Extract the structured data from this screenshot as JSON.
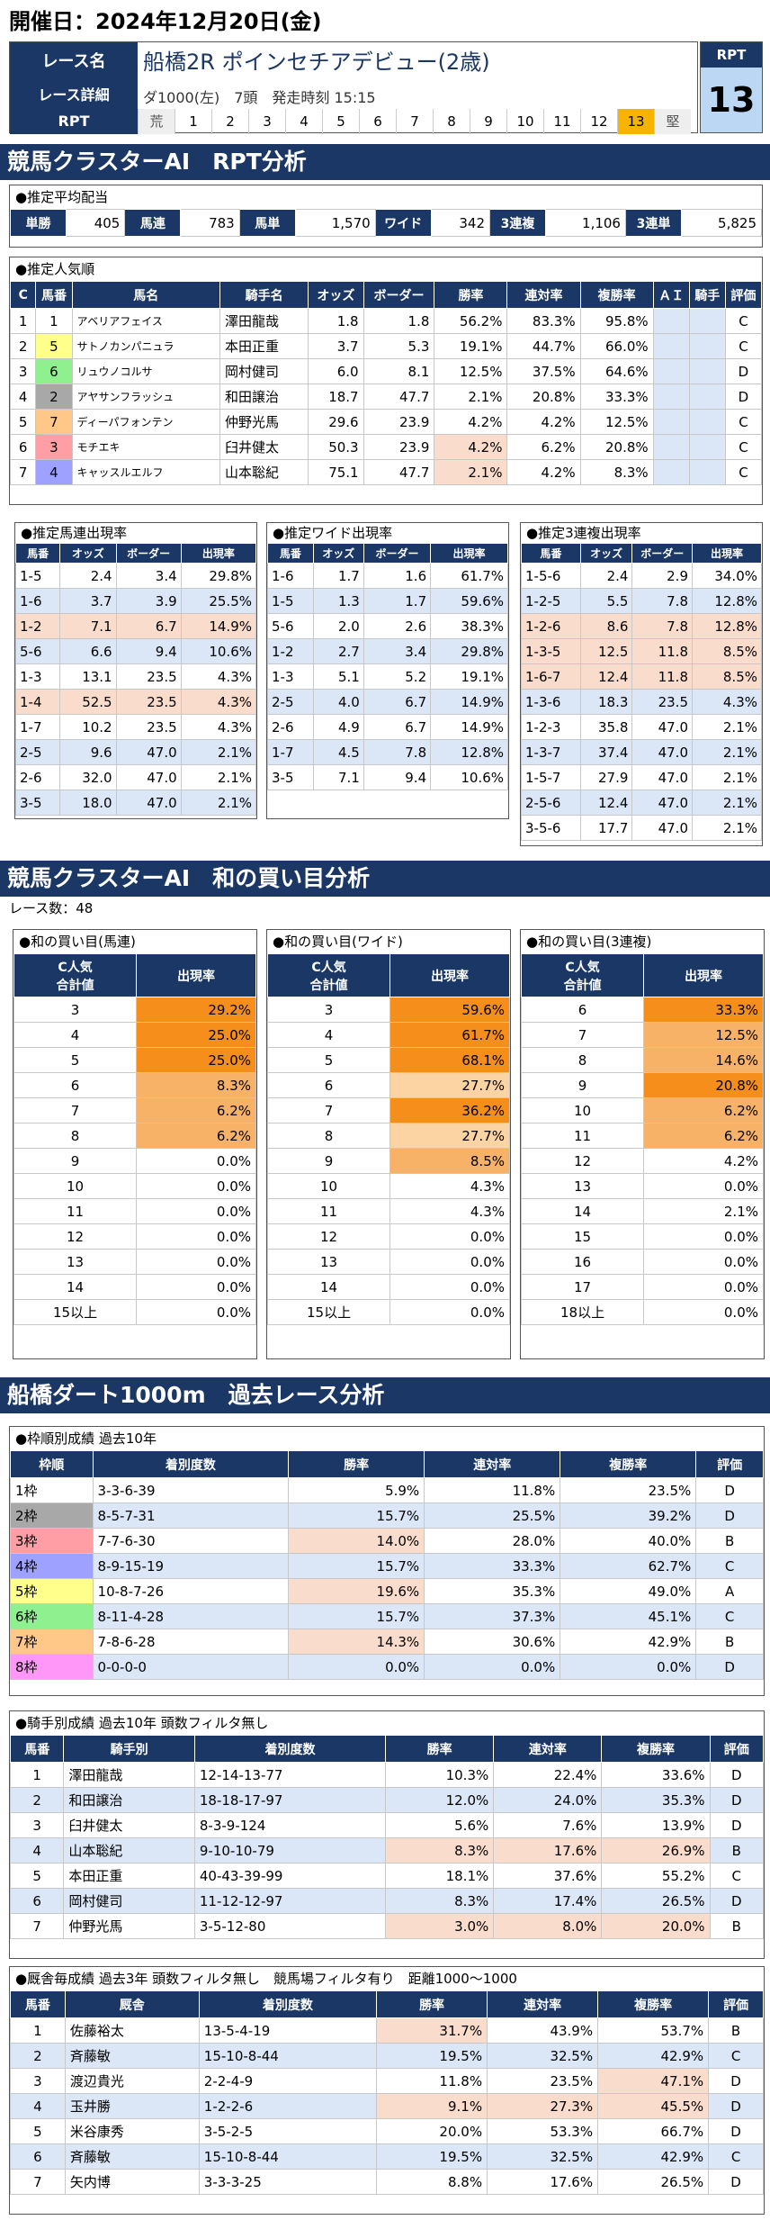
{
  "header": {
    "date": "開催日：2024年12月20日(金)"
  },
  "race": {
    "name_label": "レース名",
    "detail_label": "レース詳細",
    "rpt_label": "RPT",
    "name": "船橋2R ポインセチアデビュー(2歳)",
    "detail": "ダ1000(左)　7頭　発走時刻 15:15",
    "rpt_cells": [
      "荒",
      "1",
      "2",
      "3",
      "4",
      "5",
      "6",
      "7",
      "8",
      "9",
      "10",
      "11",
      "12",
      "13",
      "堅"
    ],
    "rpt_box_label": "RPT",
    "rpt_value": "13"
  },
  "sec1": {
    "title": "競馬クラスターAI　RPT分析"
  },
  "payout": {
    "title": "●推定平均配当",
    "items": [
      {
        "k": "単勝",
        "v": "405"
      },
      {
        "k": "馬連",
        "v": "783"
      },
      {
        "k": "馬単",
        "v": "1,570"
      },
      {
        "k": "ワイド",
        "v": "342"
      },
      {
        "k": "3連複",
        "v": "1,106"
      },
      {
        "k": "3連単",
        "v": "5,825"
      }
    ]
  },
  "pop": {
    "title": "●推定人気順",
    "headers": [
      "C",
      "馬番",
      "馬名",
      "騎手名",
      "オッズ",
      "ボーダー",
      "勝率",
      "連対率",
      "複勝率",
      "ＡＩ",
      "騎手",
      "評価"
    ],
    "rows": [
      [
        "1",
        "1",
        "アベリアフェイス",
        "澤田龍哉",
        "1.8",
        "1.8",
        "56.2%",
        "83.3%",
        "95.8%",
        "",
        "",
        "C"
      ],
      [
        "2",
        "5",
        "サトノカンパニュラ",
        "本田正重",
        "3.7",
        "5.3",
        "19.1%",
        "44.7%",
        "66.0%",
        "",
        "",
        "C"
      ],
      [
        "3",
        "6",
        "リュウノコルサ",
        "岡村健司",
        "6.0",
        "8.1",
        "12.5%",
        "37.5%",
        "64.6%",
        "",
        "",
        "D"
      ],
      [
        "4",
        "2",
        "アヤサンフラッシュ",
        "和田譲治",
        "18.7",
        "47.7",
        "2.1%",
        "20.8%",
        "33.3%",
        "",
        "",
        "D"
      ],
      [
        "5",
        "7",
        "ディーパフォンテン",
        "仲野光馬",
        "29.6",
        "23.9",
        "4.2%",
        "4.2%",
        "12.5%",
        "",
        "",
        "C"
      ],
      [
        "6",
        "3",
        "モチエキ",
        "臼井健太",
        "50.3",
        "23.9",
        "4.2%",
        "6.2%",
        "20.8%",
        "",
        "",
        "C"
      ],
      [
        "7",
        "4",
        "キャッスルエルフ",
        "山本聡紀",
        "75.1",
        "47.7",
        "2.1%",
        "4.2%",
        "8.3%",
        "",
        "",
        "C"
      ]
    ]
  },
  "umaren": {
    "title": "●推定馬連出現率",
    "headers": [
      "馬番",
      "オッズ",
      "ボーダー",
      "出現率"
    ],
    "rows": [
      [
        "1-5",
        "2.4",
        "3.4",
        "29.8%"
      ],
      [
        "1-6",
        "3.7",
        "3.9",
        "25.5%"
      ],
      [
        "1-2",
        "7.1",
        "6.7",
        "14.9%"
      ],
      [
        "5-6",
        "6.6",
        "9.4",
        "10.6%"
      ],
      [
        "1-3",
        "13.1",
        "23.5",
        "4.3%"
      ],
      [
        "1-4",
        "52.5",
        "23.5",
        "4.3%"
      ],
      [
        "1-7",
        "10.2",
        "23.5",
        "4.3%"
      ],
      [
        "2-5",
        "9.6",
        "47.0",
        "2.1%"
      ],
      [
        "2-6",
        "32.0",
        "47.0",
        "2.1%"
      ],
      [
        "3-5",
        "18.0",
        "47.0",
        "2.1%"
      ]
    ]
  },
  "wide": {
    "title": "●推定ワイド出現率",
    "headers": [
      "馬番",
      "オッズ",
      "ボーダー",
      "出現率"
    ],
    "rows": [
      [
        "1-6",
        "1.7",
        "1.6",
        "61.7%"
      ],
      [
        "1-5",
        "1.3",
        "1.7",
        "59.6%"
      ],
      [
        "5-6",
        "2.0",
        "2.6",
        "38.3%"
      ],
      [
        "1-2",
        "2.7",
        "3.4",
        "29.8%"
      ],
      [
        "1-3",
        "5.1",
        "5.2",
        "19.1%"
      ],
      [
        "2-5",
        "4.0",
        "6.7",
        "14.9%"
      ],
      [
        "2-6",
        "4.9",
        "6.7",
        "14.9%"
      ],
      [
        "1-7",
        "4.5",
        "7.8",
        "12.8%"
      ],
      [
        "3-5",
        "7.1",
        "9.4",
        "10.6%"
      ]
    ]
  },
  "trio": {
    "title": "●推定3連複出現率",
    "headers": [
      "馬番",
      "オッズ",
      "ボーダー",
      "出現率"
    ],
    "rows": [
      [
        "1-5-6",
        "2.4",
        "2.9",
        "34.0%"
      ],
      [
        "1-2-5",
        "5.5",
        "7.8",
        "12.8%"
      ],
      [
        "1-2-6",
        "8.6",
        "7.8",
        "12.8%"
      ],
      [
        "1-3-5",
        "12.5",
        "11.8",
        "8.5%"
      ],
      [
        "1-6-7",
        "12.4",
        "11.8",
        "8.5%"
      ],
      [
        "1-3-6",
        "18.3",
        "23.5",
        "4.3%"
      ],
      [
        "1-2-3",
        "35.8",
        "47.0",
        "2.1%"
      ],
      [
        "1-3-7",
        "37.4",
        "47.0",
        "2.1%"
      ],
      [
        "1-5-7",
        "27.9",
        "47.0",
        "2.1%"
      ],
      [
        "2-5-6",
        "12.4",
        "47.0",
        "2.1%"
      ],
      [
        "3-5-6",
        "17.7",
        "47.0",
        "2.1%"
      ]
    ]
  },
  "sec2": {
    "title": "競馬クラスターAI　和の買い目分析",
    "count": "レース数：48"
  },
  "sum": {
    "head1": "C人気",
    "head1b": "合計値",
    "head2": "出現率",
    "umaren": {
      "title": "●和の買い目(馬連)",
      "rows": [
        [
          "3",
          "29.2%"
        ],
        [
          "4",
          "25.0%"
        ],
        [
          "5",
          "25.0%"
        ],
        [
          "6",
          "8.3%"
        ],
        [
          "7",
          "6.2%"
        ],
        [
          "8",
          "6.2%"
        ],
        [
          "9",
          "0.0%"
        ],
        [
          "10",
          "0.0%"
        ],
        [
          "11",
          "0.0%"
        ],
        [
          "12",
          "0.0%"
        ],
        [
          "13",
          "0.0%"
        ],
        [
          "14",
          "0.0%"
        ],
        [
          "15以上",
          "0.0%"
        ]
      ]
    },
    "wide": {
      "title": "●和の買い目(ワイド)",
      "rows": [
        [
          "3",
          "59.6%"
        ],
        [
          "4",
          "61.7%"
        ],
        [
          "5",
          "68.1%"
        ],
        [
          "6",
          "27.7%"
        ],
        [
          "7",
          "36.2%"
        ],
        [
          "8",
          "27.7%"
        ],
        [
          "9",
          "8.5%"
        ],
        [
          "10",
          "4.3%"
        ],
        [
          "11",
          "4.3%"
        ],
        [
          "12",
          "0.0%"
        ],
        [
          "13",
          "0.0%"
        ],
        [
          "14",
          "0.0%"
        ],
        [
          "15以上",
          "0.0%"
        ]
      ]
    },
    "trio": {
      "title": "●和の買い目(3連複)",
      "rows": [
        [
          "6",
          "33.3%"
        ],
        [
          "7",
          "12.5%"
        ],
        [
          "8",
          "14.6%"
        ],
        [
          "9",
          "20.8%"
        ],
        [
          "10",
          "6.2%"
        ],
        [
          "11",
          "6.2%"
        ],
        [
          "12",
          "4.2%"
        ],
        [
          "13",
          "0.0%"
        ],
        [
          "14",
          "2.1%"
        ],
        [
          "15",
          "0.0%"
        ],
        [
          "16",
          "0.0%"
        ],
        [
          "17",
          "0.0%"
        ],
        [
          "18以上",
          "0.0%"
        ]
      ]
    }
  },
  "sec3": {
    "title": "船橋ダート1000m　過去レース分析"
  },
  "waku": {
    "title": "●枠順別成績 過去10年",
    "headers": [
      "枠順",
      "着別度数",
      "勝率",
      "連対率",
      "複勝率",
      "評価"
    ],
    "rows": [
      [
        "1枠",
        "3-3-6-39",
        "5.9%",
        "11.8%",
        "23.5%",
        "D"
      ],
      [
        "2枠",
        "8-5-7-31",
        "15.7%",
        "25.5%",
        "39.2%",
        "D"
      ],
      [
        "3枠",
        "7-7-6-30",
        "14.0%",
        "28.0%",
        "40.0%",
        "B"
      ],
      [
        "4枠",
        "8-9-15-19",
        "15.7%",
        "33.3%",
        "62.7%",
        "C"
      ],
      [
        "5枠",
        "10-8-7-26",
        "19.6%",
        "35.3%",
        "49.0%",
        "A"
      ],
      [
        "6枠",
        "8-11-4-28",
        "15.7%",
        "37.3%",
        "45.1%",
        "C"
      ],
      [
        "7枠",
        "7-8-6-28",
        "14.3%",
        "30.6%",
        "42.9%",
        "B"
      ],
      [
        "8枠",
        "0-0-0-0",
        "0.0%",
        "0.0%",
        "0.0%",
        "D"
      ]
    ]
  },
  "jockey": {
    "title": "●騎手別成績 過去10年 頭数フィルタ無し",
    "headers": [
      "馬番",
      "騎手別",
      "着別度数",
      "勝率",
      "連対率",
      "複勝率",
      "評価"
    ],
    "rows": [
      [
        "1",
        "澤田龍哉",
        "12-14-13-77",
        "10.3%",
        "22.4%",
        "33.6%",
        "D"
      ],
      [
        "2",
        "和田譲治",
        "18-18-17-97",
        "12.0%",
        "24.0%",
        "35.3%",
        "D"
      ],
      [
        "3",
        "臼井健太",
        "8-3-9-124",
        "5.6%",
        "7.6%",
        "13.9%",
        "D"
      ],
      [
        "4",
        "山本聡紀",
        "9-10-10-79",
        "8.3%",
        "17.6%",
        "26.9%",
        "B"
      ],
      [
        "5",
        "本田正重",
        "40-43-39-99",
        "18.1%",
        "37.6%",
        "55.2%",
        "C"
      ],
      [
        "6",
        "岡村健司",
        "11-12-12-97",
        "8.3%",
        "17.4%",
        "26.5%",
        "D"
      ],
      [
        "7",
        "仲野光馬",
        "3-5-12-80",
        "3.0%",
        "8.0%",
        "20.0%",
        "B"
      ]
    ]
  },
  "stable": {
    "title": "●厩舎毎成績 過去3年 頭数フィルタ無し　競馬場フィルタ有り　距離1000～1000",
    "headers": [
      "馬番",
      "厩舎",
      "着別度数",
      "勝率",
      "連対率",
      "複勝率",
      "評価"
    ],
    "rows": [
      [
        "1",
        "佐藤裕太",
        "13-5-4-19",
        "31.7%",
        "43.9%",
        "53.7%",
        "B"
      ],
      [
        "2",
        "斉藤敏",
        "15-10-8-44",
        "19.5%",
        "32.5%",
        "42.9%",
        "C"
      ],
      [
        "3",
        "渡辺貴光",
        "2-2-4-9",
        "11.8%",
        "23.5%",
        "47.1%",
        "D"
      ],
      [
        "4",
        "玉井勝",
        "1-2-2-6",
        "9.1%",
        "27.3%",
        "45.5%",
        "D"
      ],
      [
        "5",
        "米谷康秀",
        "3-5-2-5",
        "20.0%",
        "53.3%",
        "66.7%",
        "D"
      ],
      [
        "6",
        "斉藤敏",
        "15-10-8-44",
        "19.5%",
        "32.5%",
        "42.9%",
        "C"
      ],
      [
        "7",
        "矢内博",
        "3-3-3-25",
        "8.8%",
        "17.6%",
        "26.5%",
        "D"
      ]
    ]
  }
}
